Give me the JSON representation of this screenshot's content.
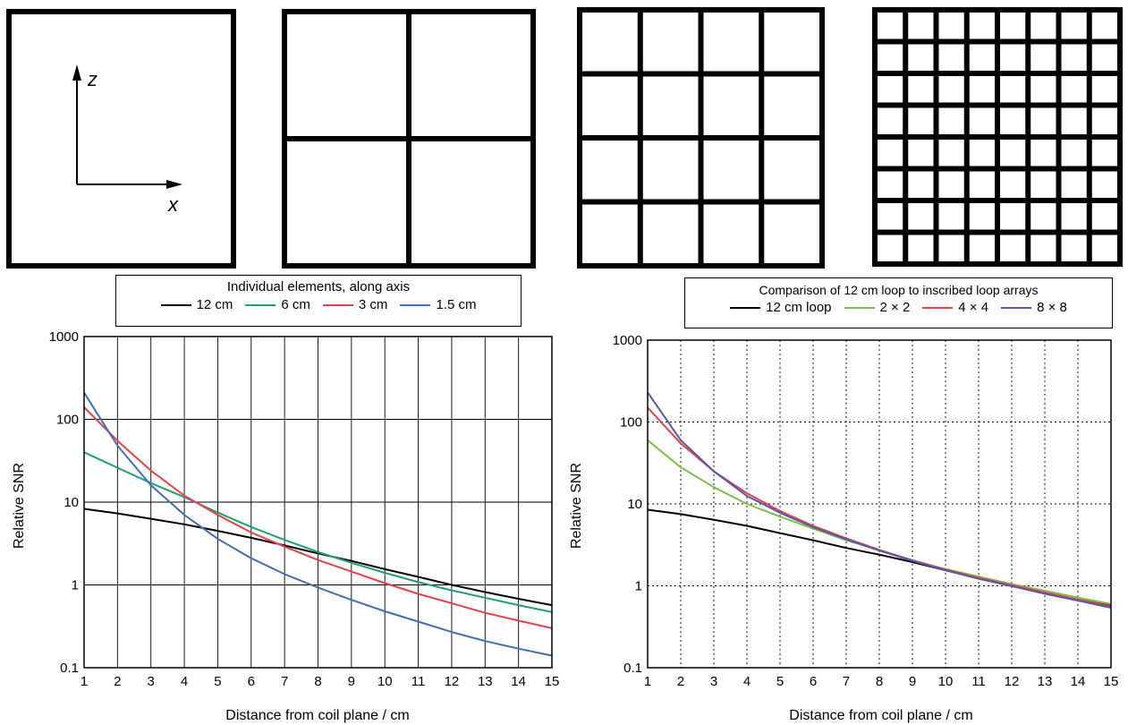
{
  "coil_diagrams": {
    "axis_labels": {
      "z": "z",
      "x": "x"
    },
    "panels": [
      {
        "name": "single-loop",
        "grid": 1
      },
      {
        "name": "array-2x2",
        "grid": 2
      },
      {
        "name": "array-4x4",
        "grid": 4
      },
      {
        "name": "array-8x8",
        "grid": 8
      }
    ]
  },
  "chart_data": [
    {
      "type": "line",
      "legend_title": "Individual elements, along axis",
      "xlabel": "Distance from coil plane / cm",
      "ylabel": "Relative SNR",
      "x_ticks": [
        1,
        2,
        3,
        4,
        5,
        6,
        7,
        8,
        9,
        10,
        11,
        12,
        13,
        14,
        15
      ],
      "y_ticks": [
        "0.1",
        "1",
        "10",
        "100",
        "1000"
      ],
      "xlim": [
        1,
        15
      ],
      "ylim": [
        0.1,
        1000
      ],
      "y_scale": "log",
      "grid": "solid",
      "series": [
        {
          "name": "12 cm",
          "color": "#000000",
          "x": [
            1,
            2,
            3,
            4,
            5,
            6,
            7,
            8,
            9,
            10,
            11,
            12,
            13,
            14,
            15
          ],
          "y": [
            8.3,
            7.3,
            6.3,
            5.4,
            4.5,
            3.7,
            3.0,
            2.4,
            1.95,
            1.55,
            1.25,
            1.0,
            0.82,
            0.68,
            0.57
          ]
        },
        {
          "name": "6 cm",
          "color": "#1aa074",
          "x": [
            1,
            2,
            3,
            4,
            5,
            6,
            7,
            8,
            9,
            10,
            11,
            12,
            13,
            14,
            15
          ],
          "y": [
            40,
            26,
            17,
            11.5,
            7.5,
            5.0,
            3.5,
            2.5,
            1.85,
            1.4,
            1.08,
            0.86,
            0.7,
            0.57,
            0.47
          ]
        },
        {
          "name": "3 cm",
          "color": "#e8414b",
          "x": [
            1,
            2,
            3,
            4,
            5,
            6,
            7,
            8,
            9,
            10,
            11,
            12,
            13,
            14,
            15
          ],
          "y": [
            140,
            55,
            24,
            12,
            7.0,
            4.3,
            2.9,
            2.0,
            1.45,
            1.05,
            0.78,
            0.6,
            0.46,
            0.37,
            0.3
          ]
        },
        {
          "name": "1.5 cm",
          "color": "#3f6fb5",
          "x": [
            1,
            2,
            3,
            4,
            5,
            6,
            7,
            8,
            9,
            10,
            11,
            12,
            13,
            14,
            15
          ],
          "y": [
            210,
            48,
            16,
            7.0,
            3.6,
            2.1,
            1.35,
            0.93,
            0.66,
            0.48,
            0.36,
            0.27,
            0.21,
            0.17,
            0.14
          ]
        }
      ]
    },
    {
      "type": "line",
      "legend_title": "Comparison of 12 cm loop to inscribed loop arrays",
      "xlabel": "Distance from coil plane / cm",
      "ylabel": "Relative SNR",
      "x_ticks": [
        1,
        2,
        3,
        4,
        5,
        6,
        7,
        8,
        9,
        10,
        11,
        12,
        13,
        14,
        15
      ],
      "y_ticks": [
        "0.1",
        "1",
        "10",
        "100",
        "1000"
      ],
      "xlim": [
        1,
        15
      ],
      "ylim": [
        0.1,
        1000
      ],
      "y_scale": "log",
      "grid": "dotted",
      "series": [
        {
          "name": "12 cm loop",
          "color": "#000000",
          "x": [
            1,
            2,
            3,
            4,
            5,
            6,
            7,
            8,
            9,
            10,
            11,
            12,
            13,
            14,
            15
          ],
          "y": [
            8.5,
            7.5,
            6.4,
            5.4,
            4.4,
            3.6,
            2.9,
            2.4,
            1.95,
            1.55,
            1.25,
            1.0,
            0.82,
            0.68,
            0.57
          ]
        },
        {
          "name": "2 × 2",
          "color": "#7fbf45",
          "x": [
            1,
            2,
            3,
            4,
            5,
            6,
            7,
            8,
            9,
            10,
            11,
            12,
            13,
            14,
            15
          ],
          "y": [
            60,
            28,
            16,
            10,
            7.0,
            5.0,
            3.6,
            2.7,
            2.05,
            1.6,
            1.3,
            1.05,
            0.87,
            0.72,
            0.6
          ]
        },
        {
          "name": "4 × 4",
          "color": "#e8414b",
          "x": [
            1,
            2,
            3,
            4,
            5,
            6,
            7,
            8,
            9,
            10,
            11,
            12,
            13,
            14,
            15
          ],
          "y": [
            150,
            55,
            25,
            13.5,
            8.2,
            5.4,
            3.8,
            2.75,
            2.05,
            1.58,
            1.25,
            1.02,
            0.83,
            0.68,
            0.56
          ]
        },
        {
          "name": "8 × 8",
          "color": "#5b57a8",
          "x": [
            1,
            2,
            3,
            4,
            5,
            6,
            7,
            8,
            9,
            10,
            11,
            12,
            13,
            14,
            15
          ],
          "y": [
            230,
            60,
            25,
            12.5,
            7.8,
            5.2,
            3.7,
            2.7,
            2.02,
            1.55,
            1.22,
            0.99,
            0.8,
            0.66,
            0.54
          ]
        }
      ]
    }
  ]
}
